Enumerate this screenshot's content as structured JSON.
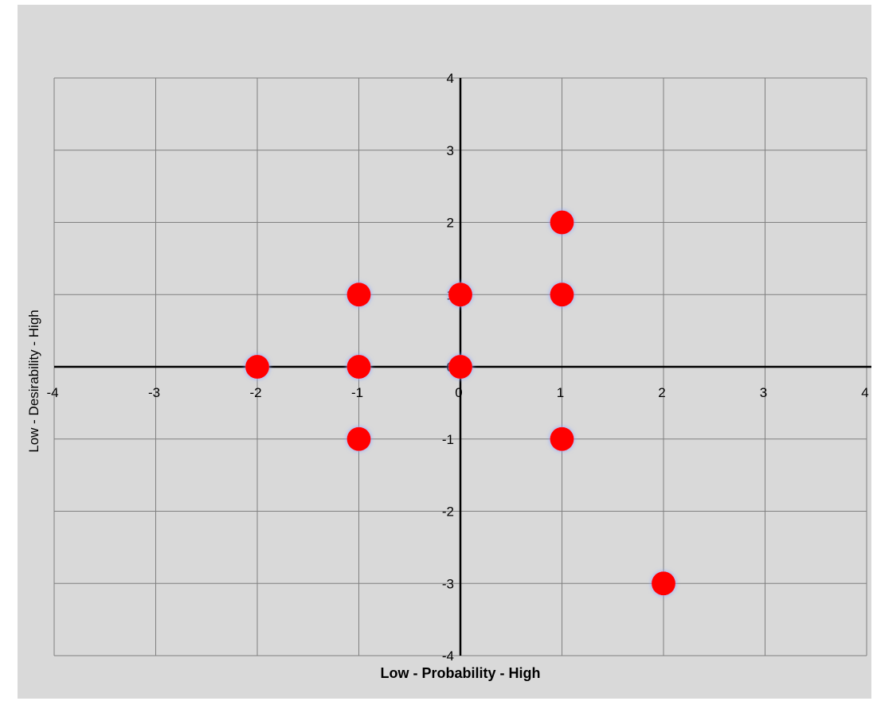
{
  "chart_data": {
    "type": "scatter",
    "title": "",
    "xlabel": "Low - Probability - High",
    "ylabel": "Low - Desirability - High",
    "xlim": [
      -4,
      4
    ],
    "ylim": [
      -4,
      4
    ],
    "xticks": [
      -4,
      -3,
      -2,
      -1,
      0,
      1,
      2,
      3,
      4
    ],
    "yticks": [
      -4,
      -3,
      -2,
      -1,
      0,
      1,
      2,
      3,
      4
    ],
    "grid": true,
    "legend": "none",
    "marker_color": "#ff0000",
    "marker_glow_color": "#8fa8ff",
    "background_color": "#d9d9d9",
    "grid_color": "#808080",
    "axis_color": "#000000",
    "points": [
      {
        "x": 1,
        "y": 2
      },
      {
        "x": -1,
        "y": 1
      },
      {
        "x": 0,
        "y": 1
      },
      {
        "x": 1,
        "y": 1
      },
      {
        "x": -2,
        "y": 0
      },
      {
        "x": -1,
        "y": 0
      },
      {
        "x": 0,
        "y": 0
      },
      {
        "x": -1,
        "y": -1
      },
      {
        "x": 1,
        "y": -1
      },
      {
        "x": 2,
        "y": -3
      }
    ]
  }
}
